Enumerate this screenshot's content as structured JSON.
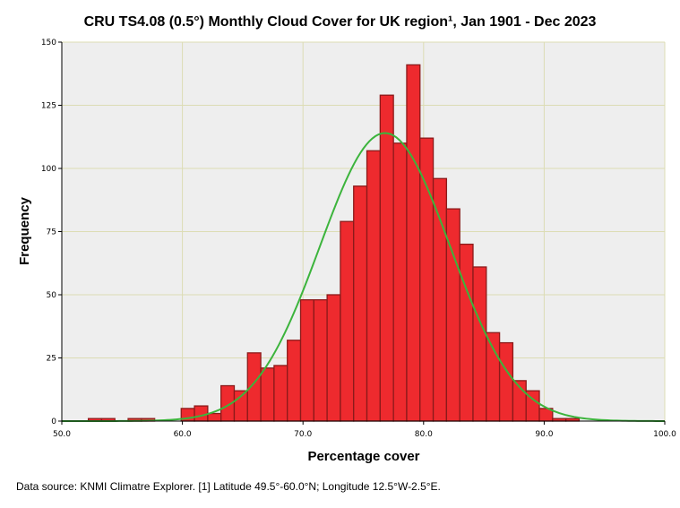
{
  "chart_data": {
    "type": "bar",
    "title": "CRU TS4.08  (0.5°) Monthly Cloud Cover for UK region¹, Jan 1901 - Dec 2023",
    "xlabel": "Percentage cover",
    "ylabel": "Frequency",
    "xlim": [
      50.0,
      100.0
    ],
    "ylim": [
      0,
      150
    ],
    "x_ticks": [
      "50.0",
      "60.0",
      "70.0",
      "80.0",
      "90.0",
      "100.0"
    ],
    "y_ticks": [
      "0",
      "25",
      "50",
      "75",
      "100",
      "125",
      "150"
    ],
    "grid": true,
    "bin_width": 1.1,
    "bins": [
      {
        "x_start": 52.2,
        "value": 1
      },
      {
        "x_start": 53.3,
        "value": 1
      },
      {
        "x_start": 55.5,
        "value": 1
      },
      {
        "x_start": 56.6,
        "value": 1
      },
      {
        "x_start": 59.9,
        "value": 5
      },
      {
        "x_start": 61.0,
        "value": 6
      },
      {
        "x_start": 62.1,
        "value": 3
      },
      {
        "x_start": 63.2,
        "value": 14
      },
      {
        "x_start": 64.3,
        "value": 12
      },
      {
        "x_start": 65.4,
        "value": 27
      },
      {
        "x_start": 66.5,
        "value": 21
      },
      {
        "x_start": 67.6,
        "value": 22
      },
      {
        "x_start": 68.7,
        "value": 32
      },
      {
        "x_start": 69.8,
        "value": 48
      },
      {
        "x_start": 70.9,
        "value": 48
      },
      {
        "x_start": 72.0,
        "value": 50
      },
      {
        "x_start": 73.1,
        "value": 79
      },
      {
        "x_start": 74.2,
        "value": 93
      },
      {
        "x_start": 75.3,
        "value": 107
      },
      {
        "x_start": 76.4,
        "value": 129
      },
      {
        "x_start": 77.5,
        "value": 110
      },
      {
        "x_start": 78.6,
        "value": 141
      },
      {
        "x_start": 79.7,
        "value": 112
      },
      {
        "x_start": 80.8,
        "value": 96
      },
      {
        "x_start": 81.9,
        "value": 84
      },
      {
        "x_start": 83.0,
        "value": 70
      },
      {
        "x_start": 84.1,
        "value": 61
      },
      {
        "x_start": 85.2,
        "value": 35
      },
      {
        "x_start": 86.3,
        "value": 31
      },
      {
        "x_start": 87.4,
        "value": 16
      },
      {
        "x_start": 88.5,
        "value": 12
      },
      {
        "x_start": 89.6,
        "value": 5
      },
      {
        "x_start": 90.7,
        "value": 1
      },
      {
        "x_start": 91.8,
        "value": 1
      }
    ],
    "normal_curve": {
      "mean": 76.8,
      "sd": 5.4,
      "peak": 114
    },
    "colors": {
      "bar_fill": "#ee2a2e",
      "bar_stroke": "#8b1a1a",
      "curve": "#3cb43c",
      "plot_bg": "#eeeeee",
      "grid": "#dcdcb4"
    }
  },
  "footnote": "Data source: KNMI Climatre Explorer. [1] Latitude 49.5°-60.0°N; Longitude 12.5°W-2.5°E."
}
